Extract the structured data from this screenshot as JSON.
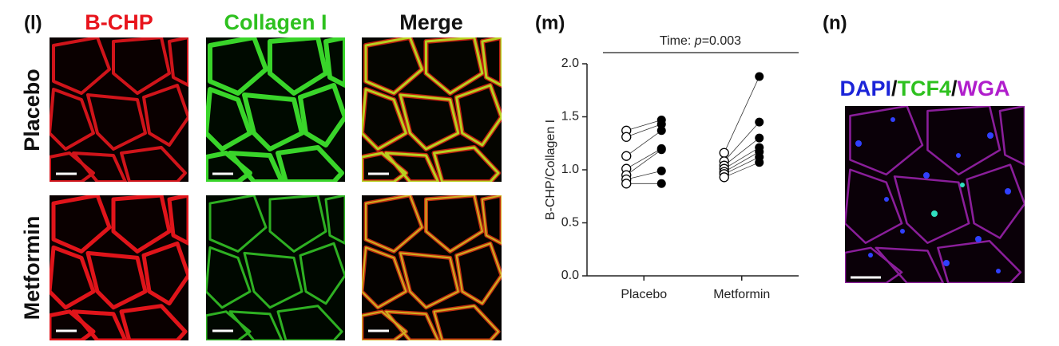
{
  "panel_l": {
    "label": "(l)",
    "columns": [
      "B-CHP",
      "Collagen I",
      "Merge"
    ],
    "rows": [
      "Placebo",
      "Metformin"
    ]
  },
  "panel_m": {
    "label": "(m)"
  },
  "panel_n": {
    "label": "(n)",
    "stains": [
      "DAPI",
      "/",
      "TCF4",
      "/",
      "WGA"
    ]
  },
  "chart_data": {
    "type": "paired-dot",
    "y_label": "B-CHP/Collagen I",
    "annotation": [
      "Time: ",
      "p",
      "=0.003"
    ],
    "categories": [
      "Placebo",
      "Metformin"
    ],
    "pairs": [
      {
        "before": [
          1.37,
          1.31,
          1.13,
          1.01,
          0.95,
          0.91,
          0.87
        ],
        "after": [
          1.47,
          1.43,
          1.37,
          1.2,
          1.19,
          0.99,
          0.87
        ]
      },
      {
        "before": [
          1.16,
          1.08,
          1.04,
          1.01,
          0.98,
          0.96,
          0.93
        ],
        "after": [
          1.88,
          1.45,
          1.3,
          1.21,
          1.17,
          1.12,
          1.07
        ]
      }
    ],
    "ylim": [
      0,
      2
    ],
    "yticks": [
      {
        "value": 0,
        "label": "0.0"
      },
      {
        "value": 0.5,
        "label": "0.5"
      },
      {
        "value": 1,
        "label": "1.0"
      },
      {
        "value": 1.5,
        "label": "1.5"
      },
      {
        "value": 2,
        "label": "2.0"
      }
    ],
    "color": "#000000"
  }
}
